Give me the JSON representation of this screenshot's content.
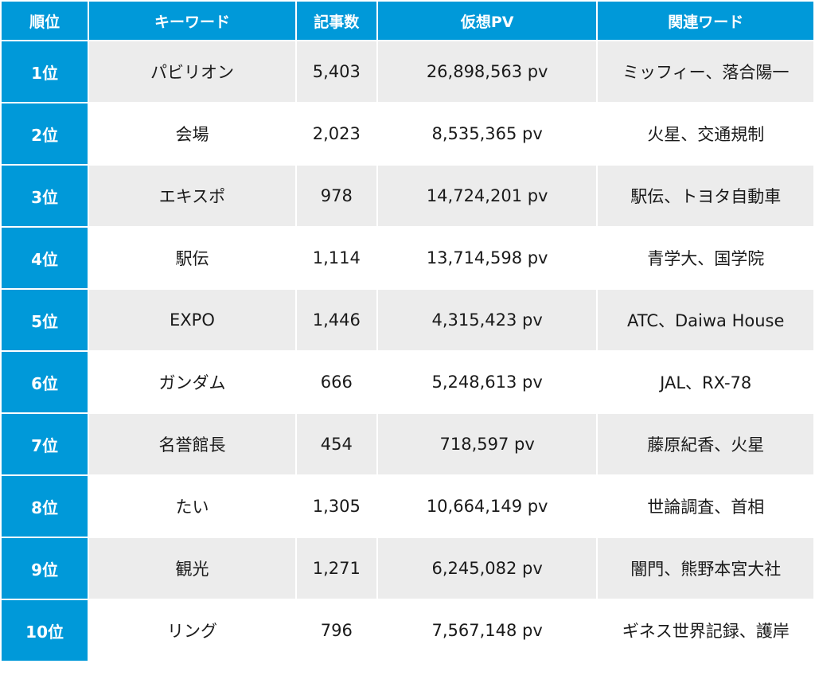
{
  "header": {
    "rank": "順位",
    "keyword": "キーワード",
    "articles": "記事数",
    "pv": "仮想PV",
    "related": "関連ワード"
  },
  "rows": [
    {
      "rank": "1位",
      "keyword": "パビリオン",
      "articles": "5,403",
      "pv": "26,898,563 pv",
      "related": "ミッフィー、落合陽一"
    },
    {
      "rank": "2位",
      "keyword": "会場",
      "articles": "2,023",
      "pv": "8,535,365 pv",
      "related": "火星、交通規制"
    },
    {
      "rank": "3位",
      "keyword": "エキスポ",
      "articles": "978",
      "pv": "14,724,201 pv",
      "related": "駅伝、トヨタ自動車"
    },
    {
      "rank": "4位",
      "keyword": "駅伝",
      "articles": "1,114",
      "pv": "13,714,598 pv",
      "related": "青学大、国学院"
    },
    {
      "rank": "5位",
      "keyword": "EXPO",
      "articles": "1,446",
      "pv": "4,315,423 pv",
      "related": "ATC、Daiwa House"
    },
    {
      "rank": "6位",
      "keyword": "ガンダム",
      "articles": "666",
      "pv": "5,248,613 pv",
      "related": "JAL、RX-78"
    },
    {
      "rank": "7位",
      "keyword": "名誉館長",
      "articles": "454",
      "pv": "718,597 pv",
      "related": "藤原紀香、火星"
    },
    {
      "rank": "8位",
      "keyword": "たい",
      "articles": "1,305",
      "pv": "10,664,149 pv",
      "related": "世論調査、首相"
    },
    {
      "rank": "9位",
      "keyword": "観光",
      "articles": "1,271",
      "pv": "6,245,082 pv",
      "related": "闇門、熊野本宮大社"
    },
    {
      "rank": "10位",
      "keyword": "リング",
      "articles": "796",
      "pv": "7,567,148 pv",
      "related": "ギネス世界記録、護岸"
    }
  ],
  "colors": {
    "header_bg": "#0099d9",
    "rank_bg": "#0099d9",
    "stripe": "#ececec"
  }
}
